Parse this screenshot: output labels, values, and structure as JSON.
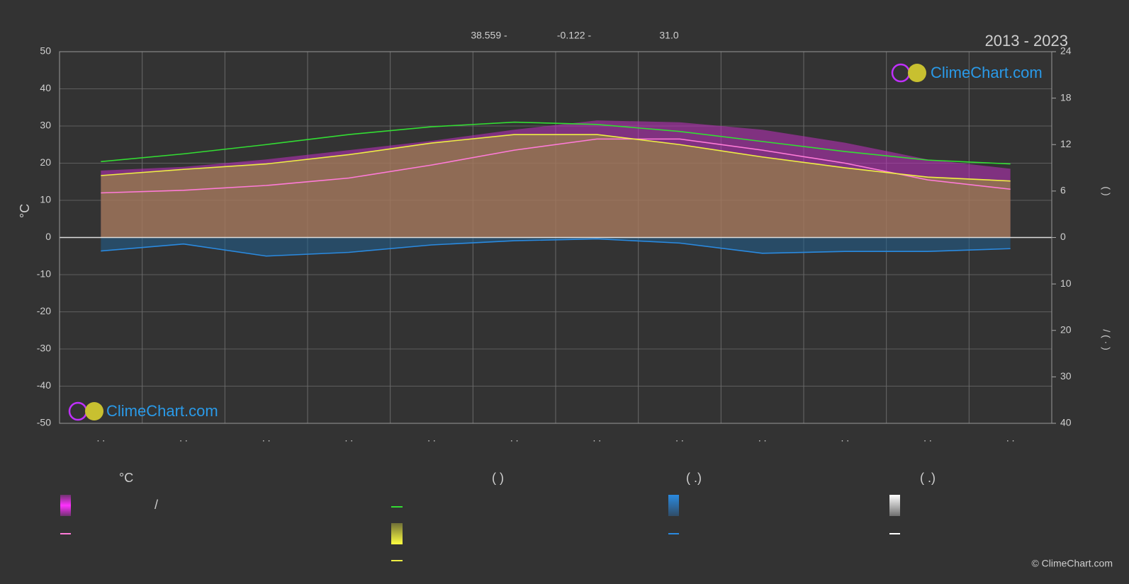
{
  "chart_data": {
    "type": "line",
    "title": "2013 - 2023",
    "header_items": [
      "38.559 -",
      "-0.122 -",
      "31.0"
    ],
    "y_label": "°C",
    "y2_label": "(    )",
    "y3_label": "/  (  ·  )",
    "categories": [
      ". .",
      ". .",
      ". .",
      ". .",
      ". .",
      ". .",
      ". .",
      ". .",
      ". .",
      ". .",
      ". .",
      ". ."
    ],
    "ylim": [
      -50,
      50
    ],
    "yticks": [
      -50,
      -40,
      -30,
      -20,
      -10,
      0,
      10,
      20,
      30,
      40,
      50
    ],
    "y2lim": [
      0,
      24
    ],
    "y2ticks": [
      0,
      6,
      12,
      18,
      24
    ],
    "y3lim": [
      0,
      40
    ],
    "y3ticks": [
      10,
      20,
      30,
      40
    ],
    "grid": true,
    "series": [
      {
        "kind": "area",
        "axis": "y",
        "color": "#c030c0",
        "values": [
          18,
          19,
          21,
          23.5,
          26,
          29,
          31.5,
          31,
          29,
          25.5,
          21,
          18.5
        ]
      },
      {
        "kind": "area",
        "axis": "y2",
        "color": "#9a9a32",
        "values": [
          8.0,
          8.8,
          9.5,
          10.7,
          12.2,
          13.3,
          13.3,
          12.0,
          10.4,
          9.0,
          7.8,
          7.3
        ]
      },
      {
        "kind": "area",
        "axis": "y3",
        "color": "#1f5f8f",
        "values": [
          2.9,
          1.4,
          4.0,
          3.2,
          1.6,
          0.7,
          0.3,
          1.2,
          3.4,
          3.0,
          3.0,
          2.4
        ]
      },
      {
        "kind": "line",
        "axis": "y",
        "color": "#ff7bd8",
        "values": [
          12,
          12.7,
          14,
          16,
          19.5,
          23.5,
          26.5,
          26.5,
          23.5,
          20,
          15.5,
          13
        ]
      },
      {
        "kind": "line",
        "axis": "y2",
        "color": "#33dd33",
        "values": [
          9.8,
          10.8,
          12.0,
          13.3,
          14.3,
          14.9,
          14.6,
          13.7,
          12.4,
          11.1,
          10.0,
          9.5
        ]
      },
      {
        "kind": "line",
        "axis": "y2",
        "color": "#eeee44",
        "values": [
          8.0,
          8.8,
          9.5,
          10.7,
          12.2,
          13.3,
          13.3,
          12.0,
          10.4,
          9.0,
          7.8,
          7.3
        ]
      },
      {
        "kind": "line",
        "axis": "y3",
        "color": "#2a8ae0",
        "values": [
          2.9,
          1.4,
          4.0,
          3.2,
          1.6,
          0.7,
          0.3,
          1.2,
          3.4,
          3.0,
          3.0,
          2.4
        ]
      }
    ]
  },
  "legend": {
    "headers": [
      "°C",
      "(          )",
      "(   .)",
      "(   .)"
    ],
    "texts": [
      "/"
    ]
  },
  "logo_text": "ClimeChart.com",
  "copyright": "© ClimeChart.com"
}
